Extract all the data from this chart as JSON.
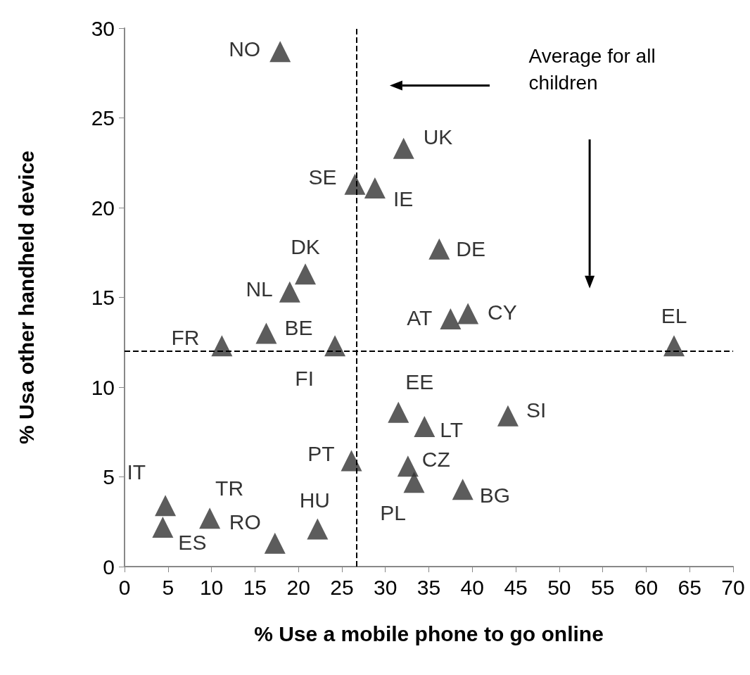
{
  "chart_data": {
    "type": "scatter",
    "xlabel": "% Use a mobile phone to go online",
    "ylabel": "% Usa other handheld device",
    "xlim": [
      0,
      70
    ],
    "xticks": [
      0,
      5,
      10,
      15,
      20,
      25,
      30,
      35,
      40,
      45,
      50,
      55,
      60,
      65,
      70
    ],
    "ylim": [
      0,
      30
    ],
    "yticks": [
      0,
      5,
      10,
      15,
      20,
      25,
      30
    ],
    "grid": false,
    "legend": false,
    "marker": "triangle",
    "series": [
      {
        "name": "NO",
        "color": "#333333",
        "x": [
          17.9
        ],
        "values": [
          28.7
        ]
      },
      {
        "name": "UK",
        "color": "#333333",
        "x": [
          32.1
        ],
        "values": [
          23.3
        ]
      },
      {
        "name": "SE",
        "color": "#333333",
        "x": [
          26.5
        ],
        "values": [
          21.3
        ]
      },
      {
        "name": "IE",
        "color": "#333333",
        "x": [
          28.8
        ],
        "values": [
          21.1
        ]
      },
      {
        "name": "DE",
        "color": "#333333",
        "x": [
          36.2
        ],
        "values": [
          17.7
        ]
      },
      {
        "name": "DK",
        "color": "#333333",
        "x": [
          20.8
        ],
        "values": [
          16.3
        ]
      },
      {
        "name": "NL",
        "color": "#333333",
        "x": [
          19.0
        ],
        "values": [
          15.3
        ]
      },
      {
        "name": "BE",
        "color": "#333333",
        "x": [
          16.3
        ],
        "values": [
          13.0
        ]
      },
      {
        "name": "FR",
        "color": "#333333",
        "x": [
          11.2
        ],
        "values": [
          12.3
        ]
      },
      {
        "name": "FI",
        "color": "#333333",
        "x": [
          24.2
        ],
        "values": [
          12.3
        ]
      },
      {
        "name": "AT",
        "color": "#333333",
        "x": [
          37.5
        ],
        "values": [
          13.8
        ]
      },
      {
        "name": "CY",
        "color": "#333333",
        "x": [
          39.5
        ],
        "values": [
          14.1
        ]
      },
      {
        "name": "EL",
        "color": "#333333",
        "x": [
          63.2
        ],
        "values": [
          12.3
        ]
      },
      {
        "name": "EE",
        "color": "#333333",
        "x": [
          31.5
        ],
        "values": [
          8.6
        ]
      },
      {
        "name": "LT",
        "color": "#333333",
        "x": [
          34.5
        ],
        "values": [
          7.8
        ]
      },
      {
        "name": "SI",
        "color": "#333333",
        "x": [
          44.1
        ],
        "values": [
          8.4
        ]
      },
      {
        "name": "PT",
        "color": "#333333",
        "x": [
          26.1
        ],
        "values": [
          5.9
        ]
      },
      {
        "name": "CZ",
        "color": "#333333",
        "x": [
          32.6
        ],
        "values": [
          5.6
        ]
      },
      {
        "name": "PL",
        "color": "#333333",
        "x": [
          33.3
        ],
        "values": [
          4.7
        ]
      },
      {
        "name": "BG",
        "color": "#333333",
        "x": [
          38.9
        ],
        "values": [
          4.3
        ]
      },
      {
        "name": "IT",
        "color": "#333333",
        "x": [
          4.7
        ],
        "values": [
          3.4
        ]
      },
      {
        "name": "ES",
        "color": "#333333",
        "x": [
          4.4
        ],
        "values": [
          2.2
        ]
      },
      {
        "name": "TR",
        "color": "#333333",
        "x": [
          9.8
        ],
        "values": [
          2.7
        ]
      },
      {
        "name": "RO",
        "color": "#333333",
        "x": [
          17.3
        ],
        "values": [
          1.3
        ]
      },
      {
        "name": "HU",
        "color": "#333333",
        "x": [
          22.2
        ],
        "values": [
          2.1
        ]
      }
    ],
    "ref_lines": [
      {
        "axis": "x",
        "value": 26.7,
        "line_style": "dashed",
        "color": "#000000"
      },
      {
        "axis": "y",
        "value": 12,
        "line_style": "dashed",
        "color": "#000000"
      }
    ],
    "annotations": [
      "Average for all children"
    ]
  }
}
